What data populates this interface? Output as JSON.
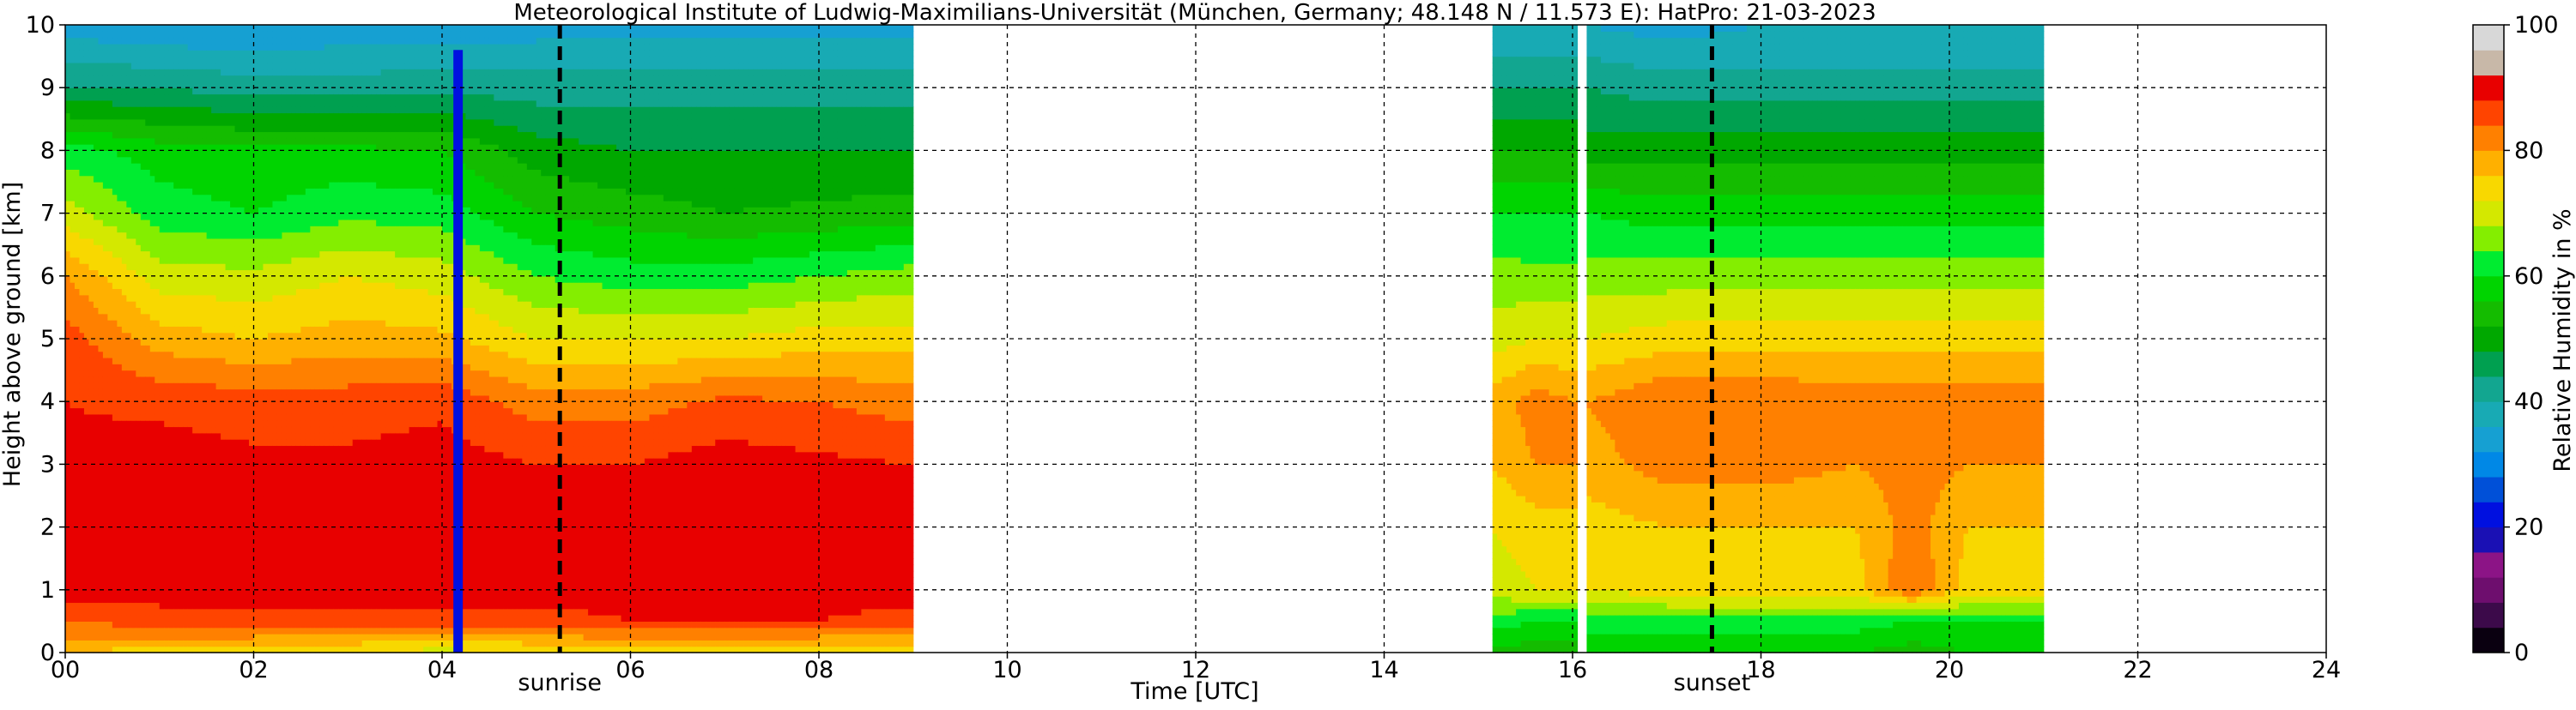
{
  "chart_data": {
    "type": "heatmap",
    "title": "Meteorological Institute of Ludwig-Maximilians-Universität (München, Germany; 48.148 N / 11.573 E):    HatPro: 21-03-2023",
    "xlabel": "Time [UTC]",
    "ylabel": "Height above ground [km]",
    "colorbar_label": "Relative Humidity in %",
    "xlim": [
      0,
      24
    ],
    "ylim": [
      0,
      10
    ],
    "x_ticks": [
      0,
      2,
      4,
      6,
      8,
      10,
      12,
      14,
      16,
      18,
      20,
      22,
      24
    ],
    "x_tick_labels": [
      "00",
      "02",
      "04",
      "06",
      "08",
      "10",
      "12",
      "14",
      "16",
      "18",
      "20",
      "22",
      "24"
    ],
    "y_ticks": [
      0,
      1,
      2,
      3,
      4,
      5,
      6,
      7,
      8,
      9,
      10
    ],
    "y_tick_labels": [
      "0",
      "1",
      "2",
      "3",
      "4",
      "5",
      "6",
      "7",
      "8",
      "9",
      "10"
    ],
    "colorbar_ticks": [
      0,
      20,
      40,
      60,
      80,
      100
    ],
    "colorbar_tick_labels": [
      "0",
      "20",
      "40",
      "60",
      "80",
      "100"
    ],
    "colorbar_range": [
      0,
      100
    ],
    "grid": true,
    "grid_style": "dashed",
    "colormap": [
      {
        "from": 0,
        "to": 4,
        "color": "#0a0010"
      },
      {
        "from": 4,
        "to": 8,
        "color": "#3c0a4a"
      },
      {
        "from": 8,
        "to": 12,
        "color": "#6e0e6e"
      },
      {
        "from": 12,
        "to": 16,
        "color": "#8c1486"
      },
      {
        "from": 16,
        "to": 20,
        "color": "#1a10b4"
      },
      {
        "from": 20,
        "to": 24,
        "color": "#0010e0"
      },
      {
        "from": 24,
        "to": 28,
        "color": "#0050d8"
      },
      {
        "from": 28,
        "to": 32,
        "color": "#0088e6"
      },
      {
        "from": 32,
        "to": 36,
        "color": "#16a0d2"
      },
      {
        "from": 36,
        "to": 40,
        "color": "#18aab4"
      },
      {
        "from": 40,
        "to": 44,
        "color": "#12a690"
      },
      {
        "from": 44,
        "to": 48,
        "color": "#00a050"
      },
      {
        "from": 48,
        "to": 52,
        "color": "#00a800"
      },
      {
        "from": 52,
        "to": 56,
        "color": "#14bc00"
      },
      {
        "from": 56,
        "to": 60,
        "color": "#00d400"
      },
      {
        "from": 60,
        "to": 64,
        "color": "#00ec30"
      },
      {
        "from": 64,
        "to": 68,
        "color": "#84ee00"
      },
      {
        "from": 68,
        "to": 72,
        "color": "#d4e800"
      },
      {
        "from": 72,
        "to": 76,
        "color": "#f8d800"
      },
      {
        "from": 76,
        "to": 80,
        "color": "#ffb000"
      },
      {
        "from": 80,
        "to": 84,
        "color": "#ff8000"
      },
      {
        "from": 84,
        "to": 88,
        "color": "#ff4400"
      },
      {
        "from": 88,
        "to": 92,
        "color": "#e80000"
      },
      {
        "from": 92,
        "to": 96,
        "color": "#c8b8a8"
      },
      {
        "from": 96,
        "to": 100,
        "color": "#d8d8d8"
      }
    ],
    "data_segments": [
      {
        "start": 0.0,
        "end": 9.0
      },
      {
        "start": 15.15,
        "end": 16.05
      },
      {
        "start": 16.15,
        "end": 21.0
      }
    ],
    "profiles": [
      {
        "time": 0.0,
        "heights": [
          0,
          0.5,
          1,
          2,
          3,
          4,
          5,
          6,
          7,
          8,
          9,
          10
        ],
        "rh": [
          76,
          84,
          90,
          90,
          89,
          88,
          86,
          80,
          70,
          62,
          44,
          34
        ]
      },
      {
        "time": 1.0,
        "heights": [
          0,
          0.5,
          1,
          2,
          3,
          4,
          5,
          6,
          7,
          8,
          9,
          10
        ],
        "rh": [
          74,
          86,
          90,
          90,
          90,
          87,
          78,
          70,
          62,
          58,
          44,
          32
        ]
      },
      {
        "time": 2.0,
        "heights": [
          0,
          0.5,
          1,
          2,
          3,
          4,
          5,
          6,
          7,
          8,
          9,
          10
        ],
        "rh": [
          74,
          86,
          90,
          90,
          89,
          86,
          76,
          69,
          60,
          57,
          42,
          32
        ]
      },
      {
        "time": 3.0,
        "heights": [
          0,
          0.5,
          1,
          2,
          3,
          4,
          5,
          6,
          7,
          8,
          9,
          10
        ],
        "rh": [
          72,
          86,
          90,
          90,
          89,
          86,
          78,
          72,
          63,
          57,
          42,
          33
        ]
      },
      {
        "time": 4.0,
        "heights": [
          0,
          0.5,
          1,
          2,
          3,
          4,
          5,
          6,
          7,
          8,
          9,
          10
        ],
        "rh": [
          70,
          86,
          90,
          90,
          90,
          87,
          77,
          70,
          62,
          56,
          43,
          33
        ]
      },
      {
        "time": 5.0,
        "heights": [
          0,
          0.5,
          1,
          2,
          3,
          4,
          5,
          6,
          7,
          8,
          9,
          10
        ],
        "rh": [
          72,
          86,
          90,
          90,
          88,
          82,
          72,
          64,
          56,
          50,
          42,
          34
        ]
      },
      {
        "time": 6.0,
        "heights": [
          0,
          0.5,
          1,
          2,
          3,
          4,
          5,
          6,
          7,
          8,
          9,
          10
        ],
        "rh": [
          74,
          88,
          90,
          90,
          88,
          82,
          72,
          62,
          54,
          48,
          42,
          34
        ]
      },
      {
        "time": 7.0,
        "heights": [
          0,
          0.5,
          1,
          2,
          3,
          4,
          5,
          6,
          7,
          8,
          9,
          10
        ],
        "rh": [
          74,
          88,
          90,
          90,
          90,
          85,
          72,
          62,
          52,
          48,
          42,
          34
        ]
      },
      {
        "time": 8.0,
        "heights": [
          0,
          0.5,
          1,
          2,
          3,
          4,
          5,
          6,
          7,
          8,
          9,
          10
        ],
        "rh": [
          72,
          88,
          90,
          90,
          89,
          84,
          74,
          64,
          53,
          48,
          42,
          34
        ]
      },
      {
        "time": 9.0,
        "heights": [
          0,
          0.5,
          1,
          2,
          3,
          4,
          5,
          6,
          7,
          8,
          9,
          10
        ],
        "rh": [
          72,
          86,
          90,
          90,
          88,
          82,
          74,
          66,
          54,
          48,
          42,
          34
        ]
      },
      {
        "time": 15.15,
        "heights": [
          0,
          0.5,
          1,
          2,
          3,
          4,
          5,
          6,
          7,
          8,
          9,
          10
        ],
        "rh": [
          54,
          62,
          70,
          72,
          76,
          78,
          70,
          66,
          60,
          52,
          44,
          36
        ]
      },
      {
        "time": 15.6,
        "heights": [
          0,
          0.5,
          1,
          2,
          3,
          4,
          5,
          6,
          7,
          8,
          9,
          10
        ],
        "rh": [
          54,
          60,
          72,
          74,
          80,
          82,
          72,
          65,
          60,
          52,
          44,
          36
        ]
      },
      {
        "time": 16.05,
        "heights": [
          0,
          0.5,
          1,
          2,
          3,
          4,
          5,
          6,
          7,
          8,
          9,
          10
        ],
        "rh": [
          54,
          60,
          72,
          74,
          80,
          80,
          72,
          65,
          60,
          52,
          44,
          36
        ]
      },
      {
        "time": 16.15,
        "heights": [
          0,
          0.5,
          1,
          2,
          3,
          4,
          5,
          6,
          7,
          8,
          9,
          10
        ],
        "rh": [
          56,
          62,
          72,
          74,
          78,
          80,
          72,
          66,
          60,
          50,
          44,
          36
        ]
      },
      {
        "time": 17.0,
        "heights": [
          0,
          0.5,
          1,
          2,
          3,
          4,
          5,
          6,
          7,
          8,
          9,
          10
        ],
        "rh": [
          56,
          62,
          74,
          76,
          82,
          84,
          74,
          66,
          58,
          50,
          42,
          34
        ]
      },
      {
        "time": 18.0,
        "heights": [
          0,
          0.5,
          1,
          2,
          3,
          4,
          5,
          6,
          7,
          8,
          9,
          10
        ],
        "rh": [
          56,
          62,
          74,
          76,
          82,
          84,
          74,
          66,
          58,
          50,
          42,
          36
        ]
      },
      {
        "time": 19.0,
        "heights": [
          0,
          0.5,
          1,
          2,
          3,
          4,
          5,
          6,
          7,
          8,
          9,
          10
        ],
        "rh": [
          56,
          62,
          74,
          76,
          80,
          82,
          74,
          66,
          58,
          50,
          42,
          36
        ]
      },
      {
        "time": 19.6,
        "heights": [
          0,
          0.5,
          1,
          2,
          3,
          4,
          5,
          6,
          7,
          8,
          9,
          10
        ],
        "rh": [
          54,
          60,
          84,
          82,
          82,
          82,
          74,
          66,
          58,
          50,
          42,
          36
        ]
      },
      {
        "time": 20.2,
        "heights": [
          0,
          0.5,
          1,
          2,
          3,
          4,
          5,
          6,
          7,
          8,
          9,
          10
        ],
        "rh": [
          56,
          60,
          74,
          76,
          80,
          82,
          74,
          66,
          58,
          50,
          42,
          36
        ]
      },
      {
        "time": 21.0,
        "heights": [
          0,
          0.5,
          1,
          2,
          3,
          4,
          5,
          6,
          7,
          8,
          9,
          10
        ],
        "rh": [
          56,
          60,
          74,
          76,
          80,
          82,
          74,
          66,
          58,
          50,
          42,
          36
        ]
      }
    ],
    "anomaly_bands": [
      {
        "start": 4.12,
        "end": 4.22,
        "height_top": 9.6,
        "rh": 22
      }
    ],
    "event_lines": [
      {
        "name": "sunrise",
        "time": 5.25
      },
      {
        "name": "sunset",
        "time": 17.48
      }
    ]
  }
}
